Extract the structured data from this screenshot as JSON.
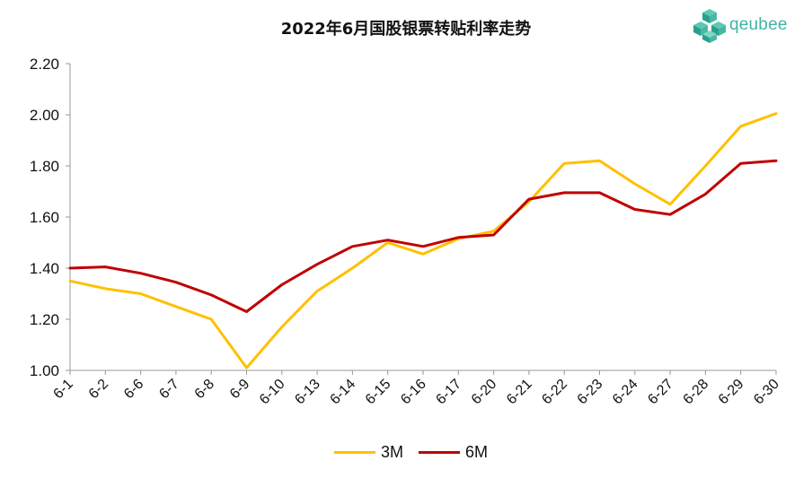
{
  "header": {
    "title": "2022年6月国股银票转贴利率走势",
    "logo_text": "qeubee",
    "logo_icon": "cube-cluster-icon",
    "logo_color": "#3fb5a3"
  },
  "chart_data": {
    "type": "line",
    "title": "2022年6月国股银票转贴利率走势",
    "xlabel": "",
    "ylabel": "",
    "categories": [
      "6-1",
      "6-2",
      "6-6",
      "6-7",
      "6-8",
      "6-9",
      "6-10",
      "6-13",
      "6-14",
      "6-15",
      "6-16",
      "6-17",
      "6-20",
      "6-21",
      "6-22",
      "6-23",
      "6-24",
      "6-27",
      "6-28",
      "6-29",
      "6-30"
    ],
    "series": [
      {
        "name": "3M",
        "color": "#FFC000",
        "values": [
          1.35,
          1.32,
          1.3,
          1.25,
          1.2,
          1.01,
          1.17,
          1.31,
          1.4,
          1.5,
          1.455,
          1.515,
          1.545,
          1.66,
          1.81,
          1.82,
          1.73,
          1.65,
          1.8,
          1.955,
          2.005
        ]
      },
      {
        "name": "6M",
        "color": "#C00000",
        "values": [
          1.4,
          1.405,
          1.38,
          1.345,
          1.295,
          1.23,
          1.335,
          1.415,
          1.485,
          1.51,
          1.485,
          1.52,
          1.53,
          1.67,
          1.695,
          1.695,
          1.63,
          1.61,
          1.69,
          1.81,
          1.82
        ]
      }
    ],
    "ylim": [
      1.0,
      2.2
    ],
    "yticks": [
      "1.00",
      "1.20",
      "1.40",
      "1.60",
      "1.80",
      "2.00",
      "2.20"
    ],
    "grid": false,
    "legend_position": "bottom"
  }
}
